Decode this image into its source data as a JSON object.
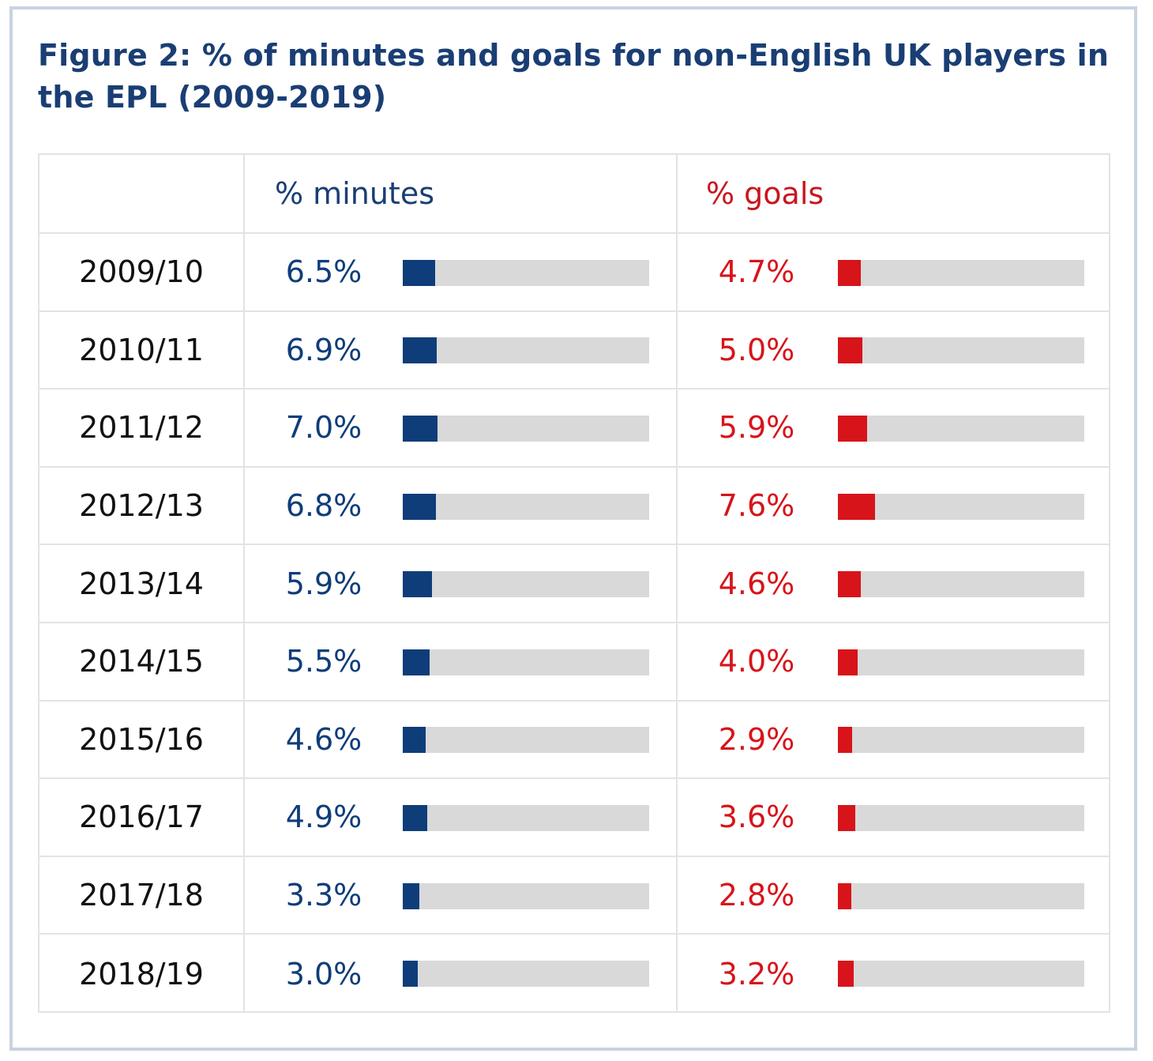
{
  "title": "Figure 2: % of minutes and goals for non-English UK players in the EPL (2009-2019)",
  "colors": {
    "minutes": "#0f3d7a",
    "goals": "#d7141a",
    "track": "#d9d9d9",
    "title": "#1a3e74"
  },
  "chart_data": {
    "type": "table",
    "title": "Figure 2: % of minutes and goals for non-English UK players in the EPL (2009-2019)",
    "columns": [
      "",
      "% minutes",
      "% goals"
    ],
    "categories": [
      "2009/10",
      "2010/11",
      "2011/12",
      "2012/13",
      "2013/14",
      "2014/15",
      "2015/16",
      "2016/17",
      "2017/18",
      "2018/19"
    ],
    "bar_scale_max_percent": 50,
    "series": [
      {
        "name": "% minutes",
        "color": "#0f3d7a",
        "values": [
          6.5,
          6.9,
          7.0,
          6.8,
          5.9,
          5.5,
          4.6,
          4.9,
          3.3,
          3.0
        ],
        "labels": [
          "6.5%",
          "6.9%",
          "7.0%",
          "6.8%",
          "5.9%",
          "5.5%",
          "4.6%",
          "4.9%",
          "3.3%",
          "3.0%"
        ]
      },
      {
        "name": "% goals",
        "color": "#d7141a",
        "values": [
          4.7,
          5.0,
          5.9,
          7.6,
          4.6,
          4.0,
          2.9,
          3.6,
          2.8,
          3.2
        ],
        "labels": [
          "4.7%",
          "5.0%",
          "5.9%",
          "7.6%",
          "4.6%",
          "4.0%",
          "2.9%",
          "3.6%",
          "2.8%",
          "3.2%"
        ]
      }
    ]
  }
}
